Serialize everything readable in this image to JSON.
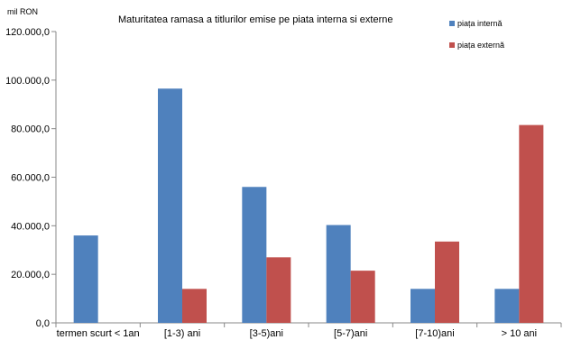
{
  "chart_data": {
    "type": "bar",
    "title": "Maturitatea ramasa a titlurilor emise pe piata interna si externe",
    "unit_label": "mil RON",
    "categories": [
      "termen scurt < 1an",
      "[1-3) ani",
      "[3-5)ani",
      "[5-7)ani",
      "[7-10)ani",
      "> 10 ani"
    ],
    "series": [
      {
        "name": "piața internă",
        "color": "#4f81bd",
        "values": [
          36000,
          96500,
          56000,
          40300,
          14000,
          14000
        ]
      },
      {
        "name": "piața externă",
        "color": "#c0504d",
        "values": [
          null,
          14000,
          27000,
          21500,
          33500,
          81500
        ]
      }
    ],
    "ylim": [
      0,
      120000
    ],
    "yticks": [
      0,
      20000,
      40000,
      60000,
      80000,
      100000,
      120000
    ],
    "ytick_labels": [
      "0,0",
      "20.000,0",
      "40.000,0",
      "60.000,0",
      "80.000,0",
      "100.000,0",
      "120.000,0"
    ],
    "grid": false,
    "legend": "top-right"
  }
}
